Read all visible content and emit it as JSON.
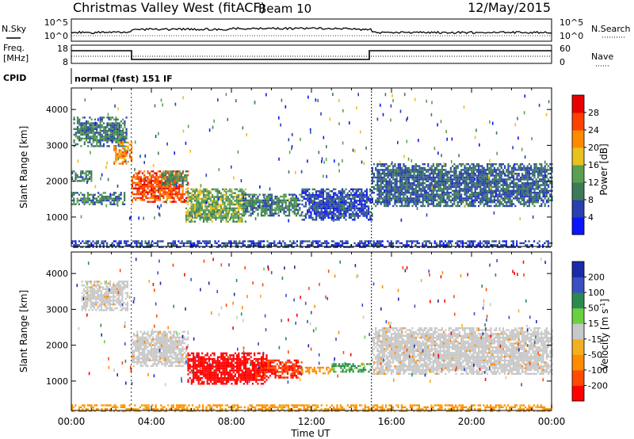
{
  "header": {
    "title": "Christmas Valley West (fitACF)",
    "beam": "Beam 10",
    "date": "12/May/2015"
  },
  "noise_panel": {
    "left_label": "N.Sky",
    "right_label": "N.Search",
    "left_ticks": [
      "10^5",
      "10^0"
    ],
    "right_ticks": [
      "10^5",
      "10^0"
    ]
  },
  "freq_panel": {
    "left_label_1": "Freq.",
    "left_label_2": "[MHz]",
    "right_label": "Nave",
    "left_ticks": [
      "18",
      "8"
    ],
    "right_ticks": [
      "60",
      "0"
    ]
  },
  "cpid": {
    "label": "CPID",
    "text": "normal (fast) 151 IF"
  },
  "colors": {
    "power_scale": [
      "#0a14ff",
      "#2a3fb0",
      "#3d7a5a",
      "#5aa050",
      "#e8c020",
      "#ff8a00",
      "#ff4000",
      "#e60000"
    ],
    "velocity_scale": [
      "#ff0000",
      "#ff4a00",
      "#ff8c00",
      "#f2b020",
      "#c8c8c8",
      "#6ad040",
      "#2a8a50",
      "#3a50c0",
      "#1a2aa8"
    ],
    "ground_scatter": "#c8c8c8"
  },
  "chart_data": [
    {
      "type": "heatmap",
      "title": "Power",
      "xlabel": "Time UT",
      "ylabel": "Slant Range [km]",
      "xlim": [
        "00:00",
        "24:00"
      ],
      "ylim": [
        180,
        4600
      ],
      "x_ticks": [
        "00:00",
        "04:00",
        "08:00",
        "12:00",
        "16:00",
        "20:00",
        "00:00"
      ],
      "y_ticks": [
        1000,
        2000,
        3000,
        4000
      ],
      "colorbar": {
        "label": "Power [dB]",
        "ticks": [
          4,
          8,
          12,
          16,
          20,
          24,
          28
        ],
        "range": [
          0,
          32
        ]
      },
      "regions": [
        {
          "t": [
            0.1,
            2.8
          ],
          "r": [
            3000,
            3800
          ],
          "power": 10
        },
        {
          "t": [
            2.1,
            3.0
          ],
          "r": [
            2500,
            3100
          ],
          "power": 22
        },
        {
          "t": [
            0.0,
            1.0
          ],
          "r": [
            2000,
            2300
          ],
          "power": 10
        },
        {
          "t": [
            0.0,
            2.7
          ],
          "r": [
            1350,
            1700
          ],
          "power": 10
        },
        {
          "t": [
            3.0,
            5.8
          ],
          "r": [
            1400,
            2300
          ],
          "power": 26
        },
        {
          "t": [
            4.5,
            5.8
          ],
          "r": [
            1900,
            2300
          ],
          "power": 12
        },
        {
          "t": [
            5.7,
            8.7
          ],
          "r": [
            850,
            1800
          ],
          "power": 14
        },
        {
          "t": [
            8.5,
            11.5
          ],
          "r": [
            1050,
            1650
          ],
          "power": 10
        },
        {
          "t": [
            11.5,
            15.0
          ],
          "r": [
            900,
            1800
          ],
          "power": 6
        },
        {
          "t": [
            15.0,
            24.0
          ],
          "r": [
            1300,
            2500
          ],
          "power": 8
        },
        {
          "t": [
            0.0,
            24.0
          ],
          "r": [
            180,
            350
          ],
          "power": 6
        }
      ]
    },
    {
      "type": "heatmap",
      "title": "Velocity",
      "xlabel": "Time UT",
      "ylabel": "Slant Range [km]",
      "xlim": [
        "00:00",
        "24:00"
      ],
      "ylim": [
        180,
        4600
      ],
      "x_ticks": [
        "00:00",
        "04:00",
        "08:00",
        "12:00",
        "16:00",
        "20:00",
        "00:00"
      ],
      "y_ticks": [
        1000,
        2000,
        3000,
        4000
      ],
      "colorbar": {
        "label": "Velocity [m s^-1]",
        "ticks": [
          200,
          100,
          50,
          15,
          -15,
          -50,
          -100,
          -200
        ]
      },
      "regions": [
        {
          "t": [
            0.5,
            2.8
          ],
          "r": [
            3000,
            3800
          ],
          "velocity": "ground"
        },
        {
          "t": [
            3.0,
            5.8
          ],
          "r": [
            1400,
            2400
          ],
          "velocity": "ground"
        },
        {
          "t": [
            5.8,
            9.8
          ],
          "r": [
            900,
            1800
          ],
          "velocity": -200
        },
        {
          "t": [
            9.2,
            11.5
          ],
          "r": [
            1100,
            1600
          ],
          "velocity": -150
        },
        {
          "t": [
            11.5,
            13.0
          ],
          "r": [
            1200,
            1400
          ],
          "velocity": -50
        },
        {
          "t": [
            13.0,
            15.0
          ],
          "r": [
            1250,
            1500
          ],
          "velocity": 40
        },
        {
          "t": [
            15.0,
            24.0
          ],
          "r": [
            1200,
            2500
          ],
          "velocity": "ground"
        },
        {
          "t": [
            0.0,
            24.0
          ],
          "r": [
            180,
            350
          ],
          "velocity": -40
        }
      ]
    }
  ]
}
